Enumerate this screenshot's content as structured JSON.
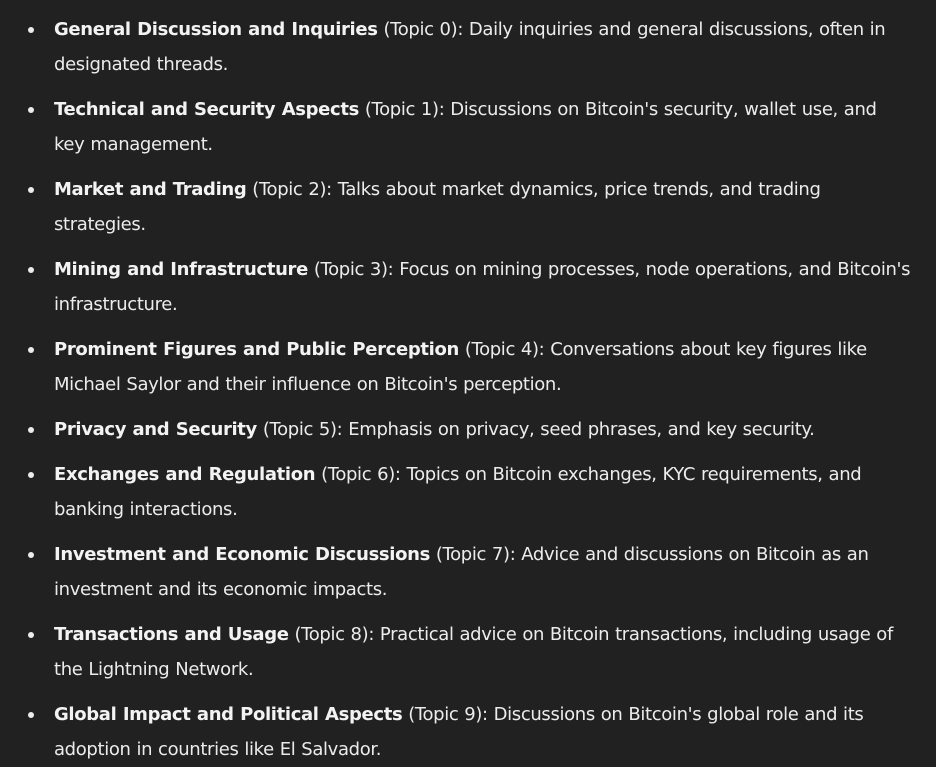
{
  "topics": [
    {
      "name": "General Discussion and Inquiries",
      "tag": "(Topic 0)",
      "description": ": Daily inquiries and general discussions, often in designated threads."
    },
    {
      "name": "Technical and Security Aspects",
      "tag": "(Topic 1)",
      "description": ": Discussions on Bitcoin's security, wallet use, and key management."
    },
    {
      "name": "Market and Trading",
      "tag": "(Topic 2)",
      "description": ": Talks about market dynamics, price trends, and trading strategies."
    },
    {
      "name": "Mining and Infrastructure",
      "tag": "(Topic 3)",
      "description": ": Focus on mining processes, node operations, and Bitcoin's infrastructure."
    },
    {
      "name": "Prominent Figures and Public Perception",
      "tag": "(Topic 4)",
      "description": ": Conversations about key figures like Michael Saylor and their influence on Bitcoin's perception."
    },
    {
      "name": "Privacy and Security",
      "tag": "(Topic 5)",
      "description": ": Emphasis on privacy, seed phrases, and key security."
    },
    {
      "name": "Exchanges and Regulation",
      "tag": "(Topic 6)",
      "description": ": Topics on Bitcoin exchanges, KYC requirements, and banking interactions."
    },
    {
      "name": "Investment and Economic Discussions",
      "tag": "(Topic 7)",
      "description": ": Advice and discussions on Bitcoin as an investment and its economic impacts."
    },
    {
      "name": "Transactions and Usage",
      "tag": "(Topic 8)",
      "description": ": Practical advice on Bitcoin transactions, including usage of the Lightning Network."
    },
    {
      "name": "Global Impact and Political Aspects",
      "tag": "(Topic 9)",
      "description": ": Discussions on Bitcoin's global role and its adoption in countries like El Salvador."
    }
  ]
}
